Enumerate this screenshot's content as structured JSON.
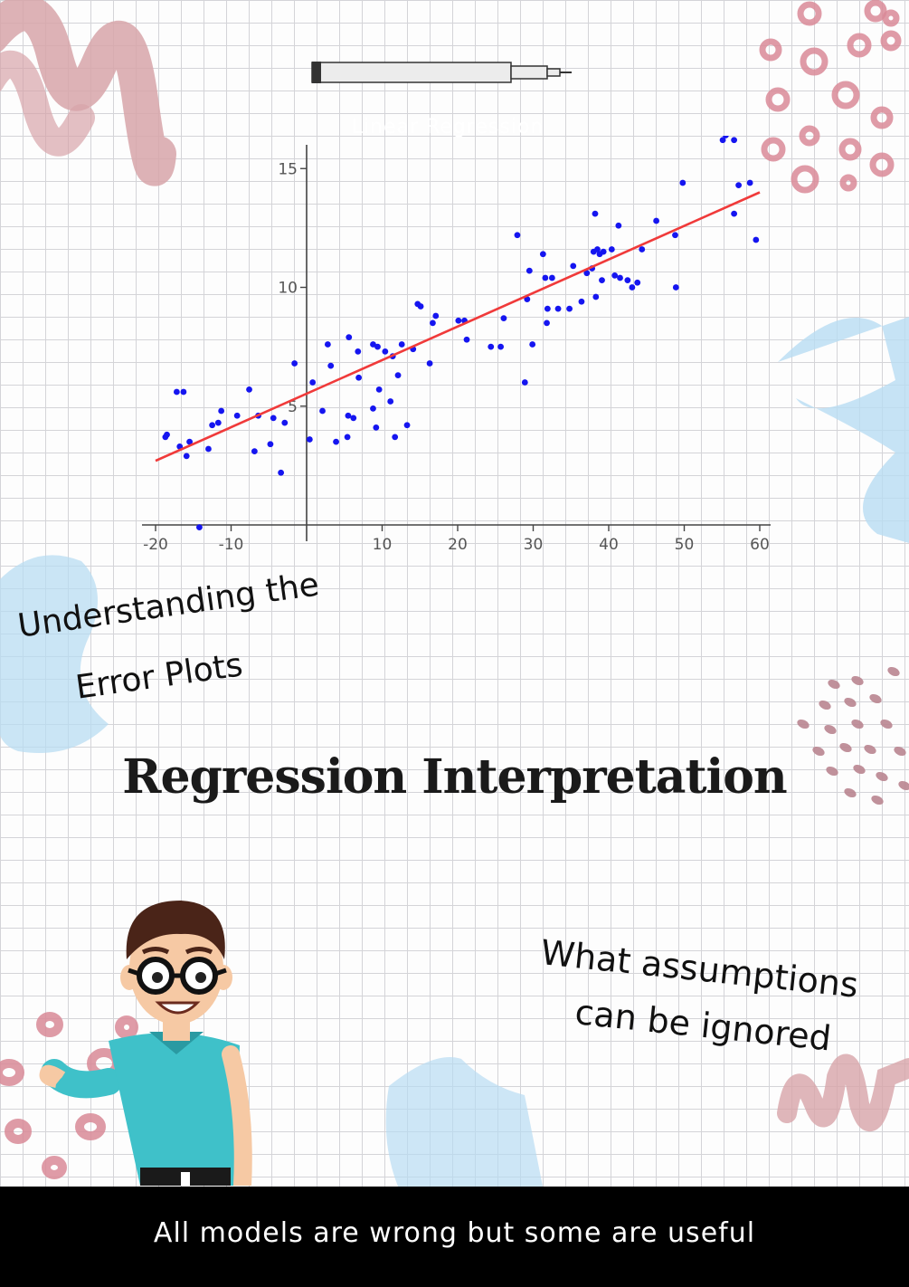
{
  "pen_caption": "Linear Regression",
  "chart_data": {
    "type": "scatter",
    "xlim": [
      -20,
      60
    ],
    "ylim": [
      0,
      16
    ],
    "xticks": [
      -20,
      -10,
      10,
      20,
      30,
      40,
      50,
      60
    ],
    "yticks": [
      5,
      10,
      15
    ],
    "grid": false,
    "point_color": "#1515f0",
    "line_color": "#f03a3a",
    "fit_line": {
      "x": [
        -20,
        60
      ],
      "y": [
        2.7,
        14.0
      ]
    },
    "points": [
      [
        -18.7,
        3.7
      ],
      [
        -18.5,
        3.8
      ],
      [
        -17.2,
        5.6
      ],
      [
        -16.3,
        5.6
      ],
      [
        -16.8,
        3.3
      ],
      [
        -15.9,
        2.9
      ],
      [
        -15.5,
        3.5
      ],
      [
        -14.2,
        -0.1
      ],
      [
        -13.0,
        3.2
      ],
      [
        -12.5,
        4.2
      ],
      [
        -11.7,
        4.3
      ],
      [
        -11.3,
        4.8
      ],
      [
        -9.2,
        4.6
      ],
      [
        -7.6,
        5.7
      ],
      [
        -6.9,
        3.1
      ],
      [
        -6.4,
        4.6
      ],
      [
        -4.8,
        3.4
      ],
      [
        -4.4,
        4.5
      ],
      [
        -3.4,
        2.2
      ],
      [
        -2.9,
        4.3
      ],
      [
        -1.6,
        6.8
      ],
      [
        0.4,
        3.6
      ],
      [
        0.8,
        6.0
      ],
      [
        2.1,
        4.8
      ],
      [
        2.8,
        7.6
      ],
      [
        3.2,
        6.7
      ],
      [
        3.9,
        3.5
      ],
      [
        5.4,
        3.7
      ],
      [
        5.6,
        7.9
      ],
      [
        5.5,
        4.6
      ],
      [
        6.8,
        7.3
      ],
      [
        6.2,
        4.5
      ],
      [
        6.9,
        6.2
      ],
      [
        8.8,
        4.9
      ],
      [
        8.8,
        7.6
      ],
      [
        9.2,
        4.1
      ],
      [
        9.4,
        7.5
      ],
      [
        9.6,
        5.7
      ],
      [
        10.4,
        7.3
      ],
      [
        11.1,
        5.2
      ],
      [
        11.4,
        7.1
      ],
      [
        11.7,
        3.7
      ],
      [
        12.1,
        6.3
      ],
      [
        12.6,
        7.6
      ],
      [
        13.3,
        4.2
      ],
      [
        14.1,
        7.4
      ],
      [
        14.7,
        9.3
      ],
      [
        15.1,
        9.2
      ],
      [
        16.3,
        6.8
      ],
      [
        16.7,
        8.5
      ],
      [
        17.1,
        8.8
      ],
      [
        20.1,
        8.6
      ],
      [
        20.9,
        8.6
      ],
      [
        21.2,
        7.8
      ],
      [
        24.4,
        7.5
      ],
      [
        25.7,
        7.5
      ],
      [
        26.1,
        8.7
      ],
      [
        27.9,
        12.2
      ],
      [
        28.9,
        6.0
      ],
      [
        29.2,
        9.5
      ],
      [
        29.5,
        10.7
      ],
      [
        29.9,
        7.6
      ],
      [
        31.3,
        11.4
      ],
      [
        31.6,
        10.4
      ],
      [
        31.8,
        8.5
      ],
      [
        31.9,
        9.1
      ],
      [
        32.5,
        10.4
      ],
      [
        33.3,
        9.1
      ],
      [
        34.8,
        9.1
      ],
      [
        35.3,
        10.9
      ],
      [
        36.4,
        9.4
      ],
      [
        37.1,
        10.6
      ],
      [
        37.8,
        10.8
      ],
      [
        38.0,
        11.5
      ],
      [
        38.2,
        13.1
      ],
      [
        38.3,
        9.6
      ],
      [
        38.5,
        11.6
      ],
      [
        38.8,
        11.4
      ],
      [
        39.3,
        11.5
      ],
      [
        39.1,
        10.3
      ],
      [
        40.4,
        11.6
      ],
      [
        40.8,
        10.5
      ],
      [
        41.3,
        12.6
      ],
      [
        41.5,
        10.4
      ],
      [
        42.5,
        10.3
      ],
      [
        43.1,
        10.0
      ],
      [
        43.8,
        10.2
      ],
      [
        44.4,
        11.6
      ],
      [
        46.3,
        12.8
      ],
      [
        48.8,
        12.2
      ],
      [
        48.9,
        10.0
      ],
      [
        49.8,
        14.4
      ],
      [
        55.1,
        16.2
      ],
      [
        55.5,
        16.4
      ],
      [
        56.6,
        16.2
      ],
      [
        56.6,
        13.1
      ],
      [
        57.2,
        14.3
      ],
      [
        58.2,
        16.6
      ],
      [
        58.7,
        14.4
      ],
      [
        59.5,
        12.0
      ]
    ]
  },
  "notes": {
    "left_line1": "Understanding the",
    "left_line2": "Error Plots",
    "right_line1": "What assumptions",
    "right_line2": "can be ignored"
  },
  "title": "Regression Interpretation",
  "footer": "All models are wrong but some are useful",
  "palette": {
    "pink": "#d98a98",
    "blush": "#d7a4a9",
    "light_blue": "#b8dcf2",
    "background": "#fdfdfd",
    "footer_bg": "#000000"
  }
}
